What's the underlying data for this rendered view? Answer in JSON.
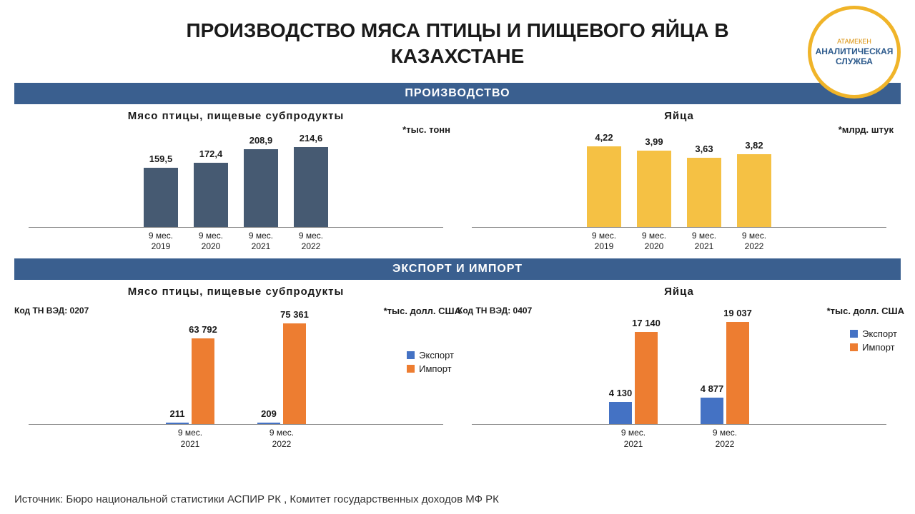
{
  "title": "ПРОИЗВОДСТВО МЯСА ПТИЦЫ И ПИЩЕВОГО ЯЙЦА В КАЗАХСТАНЕ",
  "logo": {
    "top": "АТАМЕКЕН",
    "mid1": "АНАЛИТИЧЕСКАЯ",
    "mid2": "СЛУЖБА",
    "border_color": "#f0b429",
    "text_color": "#2c5a8c"
  },
  "colors": {
    "section_bg": "#3a5f8f",
    "bar_dark": "#465a72",
    "bar_yellow": "#f5c144",
    "bar_blue": "#4472c4",
    "bar_orange": "#ed7d31"
  },
  "section1": {
    "header": "ПРОИЗВОДСТВО",
    "chart1": {
      "type": "bar",
      "title": "Мясо птицы, пищевые субпродукты",
      "unit": "*тыс. тонн",
      "categories": [
        "9 мес. 2019",
        "9 мес. 2020",
        "9 мес. 2021",
        "9 мес. 2022"
      ],
      "values": [
        159.5,
        172.4,
        208.9,
        214.6
      ],
      "labels": [
        "159,5",
        "172,4",
        "208,9",
        "214,6"
      ],
      "color": "#465a72",
      "max": 230
    },
    "chart2": {
      "type": "bar",
      "title": "Яйца",
      "unit": "*млрд. штук",
      "categories": [
        "9 мес. 2019",
        "9 мес. 2020",
        "9 мес. 2021",
        "9 мес. 2022"
      ],
      "values": [
        4.22,
        3.99,
        3.63,
        3.82
      ],
      "labels": [
        "4,22",
        "3,99",
        "3,63",
        "3,82"
      ],
      "color": "#f5c144",
      "max": 4.5
    }
  },
  "section2": {
    "header": "ЭКСПОРТ И ИМПОРТ",
    "chart1": {
      "type": "grouped-bar",
      "title": "Мясо птицы, пищевые субпродукты",
      "code": "Код ТН ВЭД: 0207",
      "unit": "*тыс. долл. США",
      "categories": [
        "9 мес. 2021",
        "9 мес. 2022"
      ],
      "series": [
        {
          "name": "Экспорт",
          "color": "#4472c4",
          "values": [
            211,
            209
          ],
          "labels": [
            "211",
            "209"
          ]
        },
        {
          "name": "Импорт",
          "color": "#ed7d31",
          "values": [
            63792,
            75361
          ],
          "labels": [
            "63 792",
            "75 361"
          ]
        }
      ],
      "max": 80000
    },
    "chart2": {
      "type": "grouped-bar",
      "title": "Яйца",
      "code": "Код ТН ВЭД: 0407",
      "unit": "*тыс. долл. США",
      "categories": [
        "9 мес. 2021",
        "9 мес. 2022"
      ],
      "series": [
        {
          "name": "Экспорт",
          "color": "#4472c4",
          "values": [
            4130,
            4877
          ],
          "labels": [
            "4 130",
            "4 877"
          ]
        },
        {
          "name": "Импорт",
          "color": "#ed7d31",
          "values": [
            17140,
            19037
          ],
          "labels": [
            "17 140",
            "19 037"
          ]
        }
      ],
      "max": 20000
    },
    "legend": {
      "export": "Экспорт",
      "import": "Импорт"
    }
  },
  "source": "Источник: Бюро национальной статистики АСПИР РК , Комитет государственных доходов МФ РК"
}
